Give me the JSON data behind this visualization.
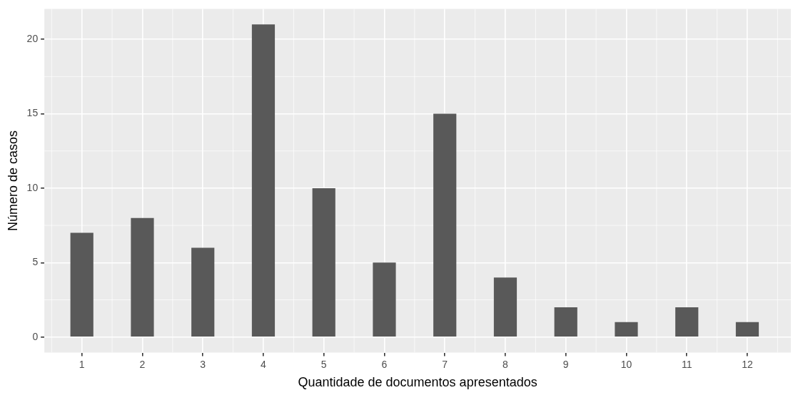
{
  "chart_data": {
    "type": "bar",
    "xlabel": "Quantidade de documentos apresentados",
    "ylabel": "Número de casos",
    "x": [
      1,
      2,
      3,
      4,
      5,
      6,
      7,
      8,
      9,
      10,
      11,
      12
    ],
    "values": [
      7,
      8,
      6,
      21,
      10,
      5,
      15,
      4,
      2,
      1,
      2,
      1
    ],
    "color": "#595959",
    "xlim": [
      0.38,
      12.72
    ],
    "xticks": [
      1,
      2,
      3,
      4,
      5,
      6,
      7,
      8,
      9,
      10,
      11,
      12
    ],
    "ylim": [
      -1.05,
      22.05
    ],
    "yticks": [
      0,
      5,
      10,
      15,
      20
    ],
    "grid": true,
    "legend": false
  }
}
